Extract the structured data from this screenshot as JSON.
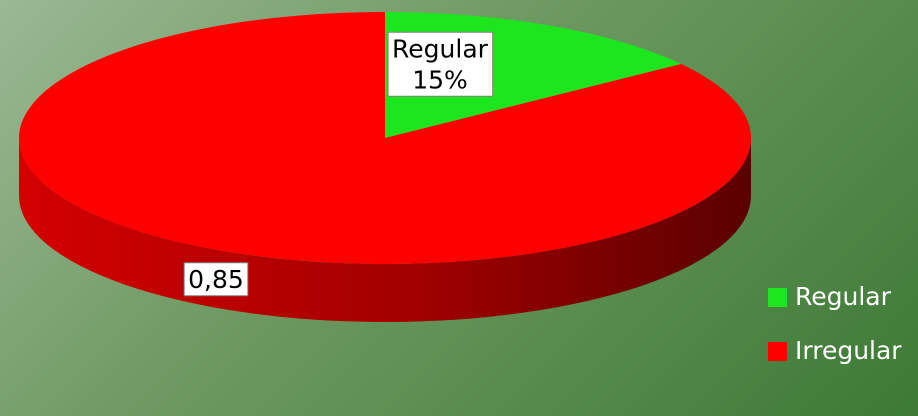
{
  "chart_data": {
    "type": "pie",
    "title": "",
    "categories": [
      "Regular",
      "Irregular"
    ],
    "values": [
      0.15,
      0.85
    ],
    "slices": [
      {
        "name": "Regular",
        "value": 0.15,
        "label_lines": [
          "Regular",
          "15%"
        ],
        "color": "#1ee61e"
      },
      {
        "name": "Irregular",
        "value": 0.85,
        "label_lines": [
          "0,85"
        ],
        "color": "#ff0000"
      }
    ],
    "legend_position": "right",
    "style": "3d"
  },
  "legend": {
    "items": [
      {
        "label": "Regular",
        "color": "#1ee61e"
      },
      {
        "label": "Irregular",
        "color": "#ff0000"
      }
    ]
  }
}
